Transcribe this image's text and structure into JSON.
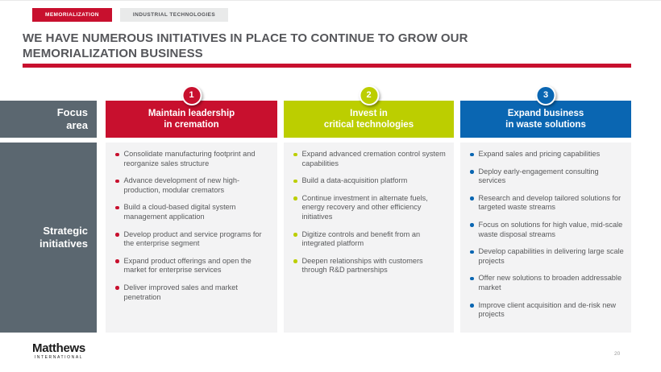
{
  "colors": {
    "red": "#C8102E",
    "green": "#BCCE00",
    "blue": "#0A66B2",
    "slate": "#5B6770",
    "panel_bg": "#F3F3F4"
  },
  "tabs": [
    {
      "label": "MEMORIALIZATION",
      "active": true
    },
    {
      "label": "INDUSTRIAL TECHNOLOGIES",
      "active": false
    }
  ],
  "title": "WE HAVE NUMEROUS INITIATIVES IN PLACE TO CONTINUE TO GROW OUR MEMORIALIZATION BUSINESS",
  "row_labels": {
    "focus": "Focus\narea",
    "strategic": "Strategic\ninitiatives"
  },
  "columns": [
    {
      "number": "1",
      "accent": "#C8102E",
      "title": "Maintain leadership\nin cremation",
      "bullets": [
        "Consolidate manufacturing footprint and reorganize sales structure",
        "Advance development of new high-production, modular cremators",
        "Build a cloud-based digital system management application",
        "Develop product and service programs for the enterprise segment",
        "Expand product offerings and open the market for enterprise services",
        "Deliver improved sales and market penetration"
      ]
    },
    {
      "number": "2",
      "accent": "#BCCE00",
      "title": "Invest in\ncritical technologies",
      "bullets": [
        "Expand advanced cremation control system capabilities",
        "Build a data-acquisition platform",
        "Continue investment in alternate fuels, energy recovery and other efficiency initiatives",
        "Digitize controls and benefit from an integrated platform",
        "Deepen relationships with customers through R&D partnerships"
      ]
    },
    {
      "number": "3",
      "accent": "#0A66B2",
      "title": "Expand business\nin waste solutions",
      "bullets": [
        "Expand sales and pricing capabilities",
        "Deploy early-engagement consulting services",
        "Research and develop tailored solutions for targeted waste streams",
        "Focus on solutions for high value, mid-scale waste disposal streams",
        "Develop capabilities in delivering large scale projects",
        "Offer new solutions to broaden addressable market",
        "Improve client acquisition and de-risk new projects"
      ]
    }
  ],
  "footer": {
    "logo_name": "Matthews",
    "logo_sub": "INTERNATIONAL",
    "page_number": "20"
  }
}
